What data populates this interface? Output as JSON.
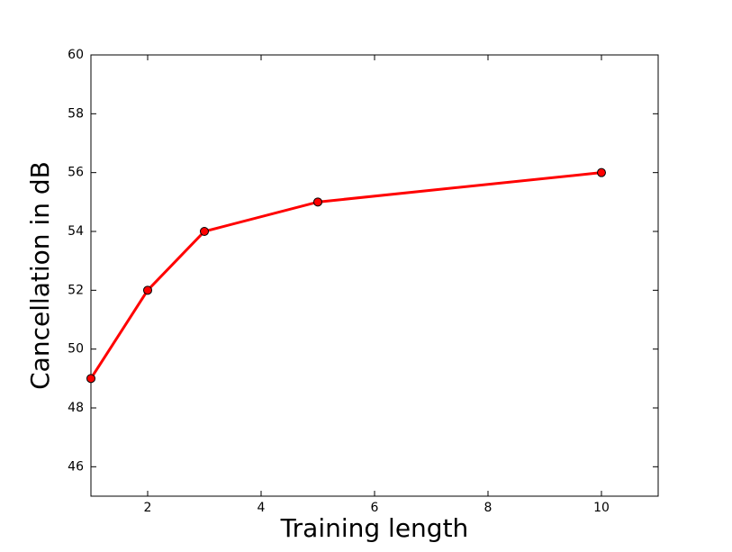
{
  "chart_data": {
    "type": "line",
    "xlabel": "Training length",
    "ylabel": "Cancellation in dB",
    "x": [
      1,
      2,
      3,
      5,
      10
    ],
    "series": [
      {
        "name": "Cancellation",
        "color": "#ff0000",
        "values": [
          49,
          52,
          54,
          55,
          56
        ]
      }
    ],
    "xlim": [
      1,
      11
    ],
    "ylim": [
      45,
      60
    ],
    "xticks": [
      2,
      4,
      6,
      8,
      10
    ],
    "yticks": [
      46,
      48,
      50,
      52,
      54,
      56,
      58,
      60
    ],
    "grid": false
  }
}
